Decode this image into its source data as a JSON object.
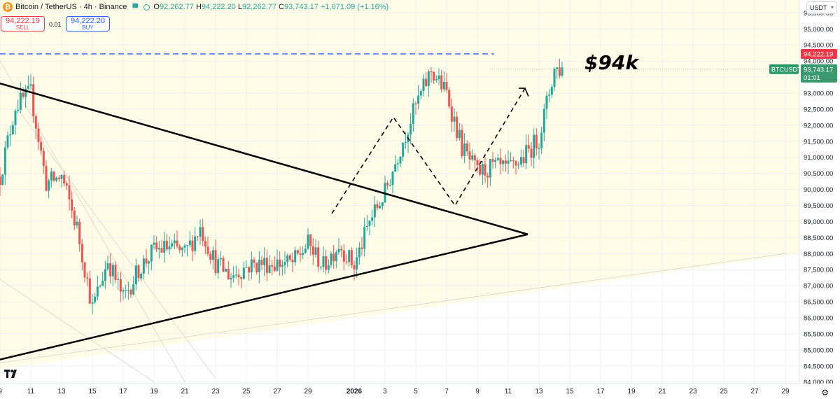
{
  "header": {
    "symbol_title": "Bitcoin / TetherUS · 4h · Binance",
    "coin_glyph": "₿",
    "o_label": "O",
    "o_value": "92,262.77",
    "h_label": "H",
    "h_value": "94,222.20",
    "l_label": "L",
    "l_value": "92,262.77",
    "c_label": "C",
    "c_value": "93,743.17",
    "change": "+1,071.09 (+1.16%)"
  },
  "trade": {
    "sell_price": "94,222.19",
    "sell_label": "SELL",
    "quantity": "0.01",
    "buy_price": "94,222.20",
    "buy_label": "BUY"
  },
  "axis": {
    "currency": "USDT",
    "settings_icon": "gear-icon"
  },
  "annotation": {
    "text": "$94k"
  },
  "price_labels": {
    "ask_line": "94,222.19",
    "symbol": "BTCUSDT",
    "last_price": "93,743.17",
    "countdown": "01:01"
  },
  "colors": {
    "up": "#26a69a",
    "down": "#ef5350",
    "bg_band": "#fffde7",
    "dashed_line": "#2962ff",
    "trendline": "#000000"
  },
  "chart_data": {
    "type": "candlestick",
    "title": "Bitcoin / TetherUS · 4h · Binance",
    "y_axis_ticks": [
      84000,
      84500,
      85000,
      85500,
      86000,
      86500,
      87000,
      87500,
      88000,
      88500,
      89000,
      89500,
      90000,
      90500,
      91000,
      91500,
      92000,
      92500,
      93000,
      93500,
      94000,
      94500,
      95000,
      95500
    ],
    "y_range": [
      83950,
      95900
    ],
    "x_tick_labels": [
      "9",
      "11",
      "13",
      "15",
      "17",
      "19",
      "21",
      "23",
      "25",
      "27",
      "29",
      "2026",
      "3",
      "5",
      "7",
      "9",
      "11",
      "13",
      "15",
      "17",
      "19",
      "21",
      "23",
      "25",
      "27",
      "29"
    ],
    "x_tick_dates": [
      "2025-12-09",
      "2025-12-11",
      "2025-12-13",
      "2025-12-15",
      "2025-12-17",
      "2025-12-19",
      "2025-12-21",
      "2025-12-23",
      "2025-12-25",
      "2025-12-27",
      "2025-12-29",
      "2026-01-01",
      "2026-01-03",
      "2026-01-05",
      "2026-01-07",
      "2026-01-09",
      "2026-01-11",
      "2026-01-13",
      "2026-01-15",
      "2026-01-17",
      "2026-01-19",
      "2026-01-21",
      "2026-01-23",
      "2026-01-25",
      "2026-01-27",
      "2026-01-29"
    ],
    "grid": true,
    "price_path": [
      [
        "2025-12-09",
        90400
      ],
      [
        "2025-12-10",
        92600
      ],
      [
        "2025-12-11",
        93000
      ],
      [
        "2025-12-12",
        90200
      ],
      [
        "2025-12-13",
        90400
      ],
      [
        "2025-12-14",
        88800
      ],
      [
        "2025-12-15",
        86300
      ],
      [
        "2025-12-16",
        87800
      ],
      [
        "2025-12-17",
        86600
      ],
      [
        "2025-12-18",
        87500
      ],
      [
        "2025-12-19",
        88100
      ],
      [
        "2025-12-20",
        88200
      ],
      [
        "2025-12-21",
        88000
      ],
      [
        "2025-12-22",
        88800
      ],
      [
        "2025-12-23",
        87700
      ],
      [
        "2025-12-24",
        87300
      ],
      [
        "2025-12-25",
        87600
      ],
      [
        "2025-12-26",
        87700
      ],
      [
        "2025-12-27",
        87700
      ],
      [
        "2025-12-28",
        87700
      ],
      [
        "2025-12-29",
        88300
      ],
      [
        "2025-12-30",
        87600
      ],
      [
        "2025-12-31",
        88300
      ],
      [
        "2026-01-01",
        87600
      ],
      [
        "2026-01-02",
        89000
      ],
      [
        "2026-01-03",
        89900
      ],
      [
        "2026-01-04",
        91300
      ],
      [
        "2026-01-05",
        92600
      ],
      [
        "2026-01-06",
        93700
      ],
      [
        "2026-01-07",
        93000
      ],
      [
        "2026-01-08",
        91300
      ],
      [
        "2026-01-09",
        90500
      ],
      [
        "2026-01-10",
        90700
      ],
      [
        "2026-01-11",
        90600
      ],
      [
        "2026-01-12",
        91000
      ],
      [
        "2026-01-13",
        91600
      ],
      [
        "2026-01-14",
        93743.17
      ]
    ],
    "current_price": 93743.17,
    "ask_price": 94222.19,
    "levels": [
      {
        "name": "",
        "price": 94222.19,
        "style": "dashed"
      }
    ]
  }
}
